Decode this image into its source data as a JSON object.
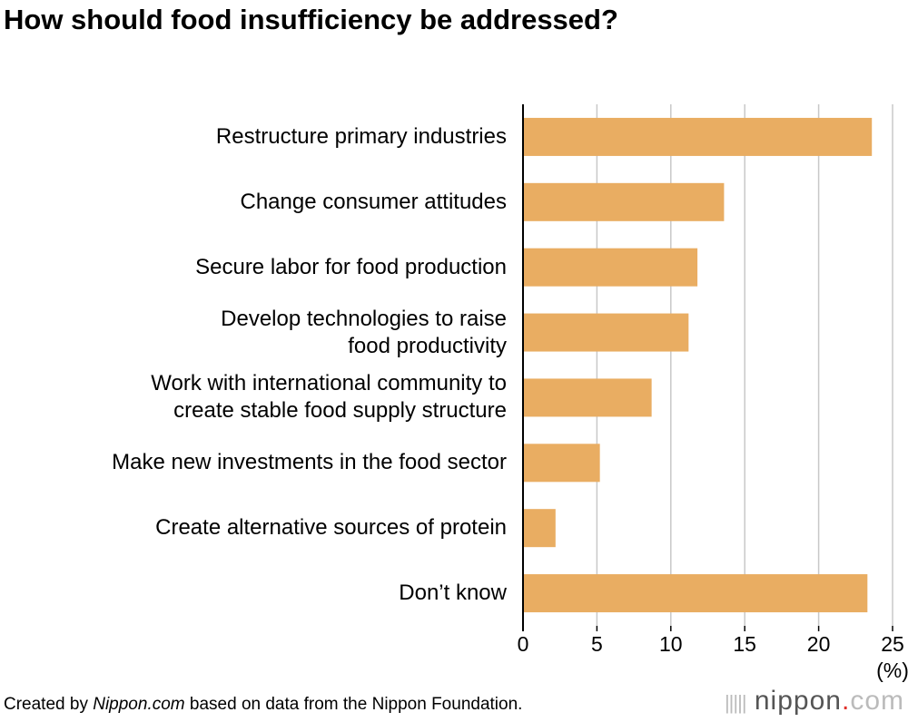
{
  "chart_data": {
    "type": "bar",
    "orientation": "horizontal",
    "title": "How should food insufficiency be addressed?",
    "categories": [
      "Restructure primary industries",
      "Change consumer attitudes",
      "Secure labor for food production",
      "Develop technologies to raise\nfood productivity",
      "Work with international community to\ncreate stable food supply structure",
      "Make new investments in the food sector",
      "Create alternative sources of protein",
      "Don’t know"
    ],
    "values": [
      23.6,
      13.6,
      11.8,
      11.2,
      8.7,
      5.2,
      2.2,
      23.3
    ],
    "color": "#e9ad62",
    "xlim": [
      0,
      25
    ],
    "xticks": [
      0,
      5,
      10,
      15,
      20,
      25
    ],
    "xlabel": "(%)",
    "grid": true
  },
  "source": {
    "prefix": "Created by ",
    "italic": "Nippon.com",
    "suffix": " based on data from the Nippon Foundation."
  },
  "logo": [
    "nippon",
    ".",
    "com"
  ]
}
